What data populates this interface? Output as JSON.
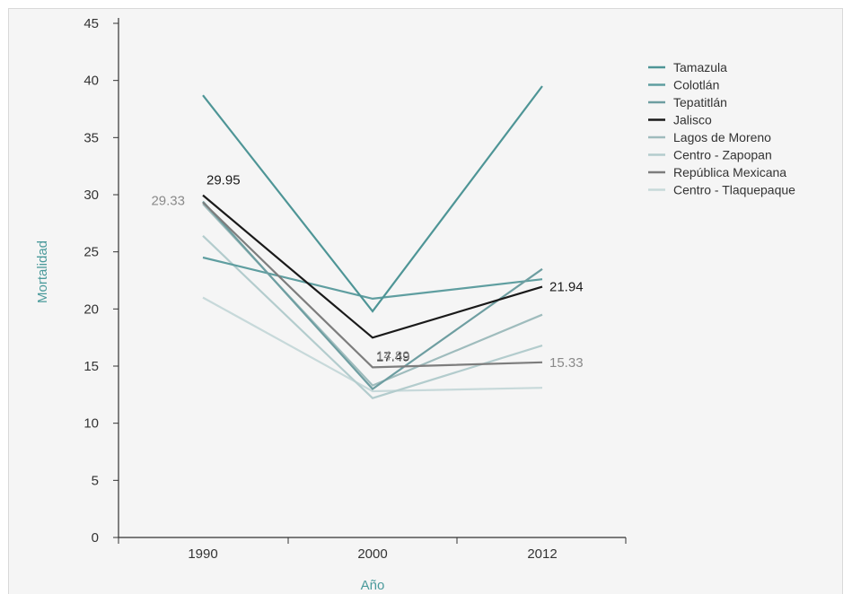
{
  "chart_data": {
    "type": "line",
    "xlabel": "Año",
    "ylabel": "Mortalidad",
    "categories": [
      "1990",
      "2000",
      "2012"
    ],
    "ylim": [
      0,
      45
    ],
    "yticks": [
      "0",
      "5",
      "10",
      "15",
      "20",
      "25",
      "30",
      "35",
      "40",
      "45"
    ],
    "legend_position": "right",
    "series": [
      {
        "name": "Tamazula",
        "values": [
          38.7,
          19.8,
          39.5
        ],
        "color": "#4e9596"
      },
      {
        "name": "Colotlán",
        "values": [
          24.5,
          20.9,
          22.6
        ],
        "color": "#5f9ea0"
      },
      {
        "name": "Tepatitlán",
        "values": [
          29.4,
          13.0,
          23.5
        ],
        "color": "#6e9ea1"
      },
      {
        "name": "Jalisco",
        "values": [
          29.95,
          17.49,
          21.94
        ],
        "color": "#1a1a1a"
      },
      {
        "name": "Lagos de Moreno",
        "values": [
          29.2,
          13.3,
          19.5
        ],
        "color": "#9fbcbd"
      },
      {
        "name": "Centro - Zapopan",
        "values": [
          26.4,
          12.2,
          16.8
        ],
        "color": "#b3cccd"
      },
      {
        "name": "República Mexicana",
        "values": [
          29.33,
          14.89,
          15.33
        ],
        "color": "#7d7d7d"
      },
      {
        "name": "Centro - Tlaquepaque",
        "values": [
          21.0,
          12.8,
          13.1
        ],
        "color": "#c7d9da"
      }
    ],
    "annotations": [
      {
        "series": "Jalisco",
        "point": 0,
        "text": "29.95",
        "color": "#1a1a1a"
      },
      {
        "series": "Jalisco",
        "point": 1,
        "text": "17.49",
        "color": "#1a1a1a"
      },
      {
        "series": "Jalisco",
        "point": 2,
        "text": "21.94",
        "color": "#1a1a1a"
      },
      {
        "series": "República Mexicana",
        "point": 0,
        "text": "29.33",
        "color": "#8a8a8a"
      },
      {
        "series": "República Mexicana",
        "point": 1,
        "text": "14.89",
        "color": "#8a8a8a"
      },
      {
        "series": "República Mexicana",
        "point": 2,
        "text": "15.33",
        "color": "#8a8a8a"
      }
    ]
  }
}
